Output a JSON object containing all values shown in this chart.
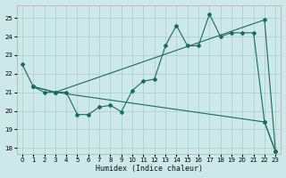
{
  "xlabel": "Humidex (Indice chaleur)",
  "bg_color": "#cde8e8",
  "grid_color": "#aacccc",
  "line_color": "#1a6b5a",
  "xlim": [
    -0.5,
    23.5
  ],
  "ylim": [
    17.7,
    25.7
  ],
  "yticks": [
    18,
    19,
    20,
    21,
    22,
    23,
    24,
    25
  ],
  "xticks": [
    0,
    1,
    2,
    3,
    4,
    5,
    6,
    7,
    8,
    9,
    10,
    11,
    12,
    13,
    14,
    15,
    16,
    17,
    18,
    19,
    20,
    21,
    22,
    23
  ],
  "line1_x": [
    0,
    1,
    2,
    3,
    4,
    5,
    6,
    7,
    8,
    9,
    10,
    11,
    12,
    13,
    14,
    15,
    16,
    17,
    18,
    19,
    20,
    21,
    22,
    23
  ],
  "line1_y": [
    22.5,
    21.3,
    21.0,
    21.0,
    21.0,
    19.8,
    19.8,
    20.2,
    20.3,
    19.95,
    21.1,
    21.6,
    21.7,
    23.5,
    24.6,
    23.5,
    23.5,
    25.2,
    24.0,
    24.2,
    24.2,
    24.2,
    19.4,
    17.8
  ],
  "line2_x": [
    1,
    3,
    22,
    23
  ],
  "line2_y": [
    21.3,
    21.0,
    24.9,
    17.8
  ],
  "line3_x": [
    1,
    3,
    22,
    23
  ],
  "line3_y": [
    21.3,
    21.0,
    19.4,
    17.8
  ]
}
